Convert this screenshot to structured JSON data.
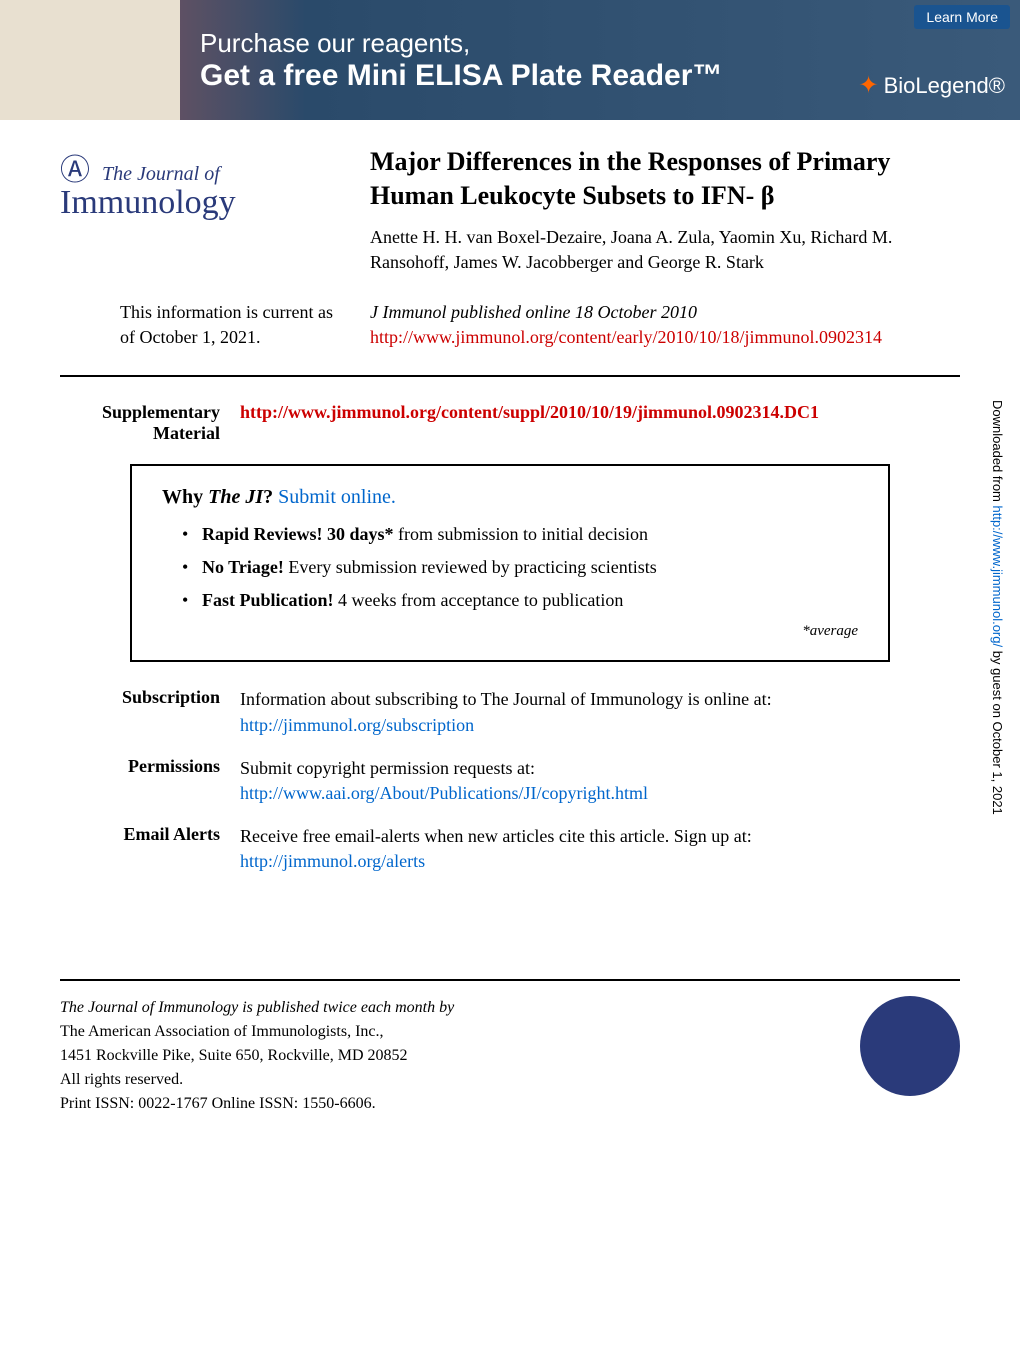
{
  "banner": {
    "top_text": "Purchase our reagents,",
    "main_text": "Get a free Mini ELISA Plate Reader™",
    "learn_more": "Learn More",
    "brand": "BioLegend®"
  },
  "journal": {
    "prefix": "The",
    "name_top": "Journal of",
    "name_bottom": "Immunology"
  },
  "article": {
    "title": "Major Differences in the Responses of Primary Human Leukocyte Subsets to IFN- β",
    "authors": "Anette H. H. van Boxel-Dezaire, Joana A. Zula, Yaomin Xu, Richard M. Ransohoff, James W. Jacobberger and George R. Stark",
    "current_info": "This information is current as of October 1, 2021.",
    "published": "J Immunol  published online 18 October 2010",
    "url": "http://www.jimmunol.org/content/early/2010/10/18/jimmunol.0902314"
  },
  "supplementary": {
    "label": "Supplementary Material",
    "url": "http://www.jimmunol.org/content/suppl/2010/10/19/jimmunol.0902314.DC1"
  },
  "why_box": {
    "title_prefix": "Why ",
    "title_italic": "The JI",
    "title_suffix": "? ",
    "submit_link": "Submit online.",
    "items": [
      {
        "bold": "Rapid Reviews! 30 days*",
        "rest": " from submission to initial decision"
      },
      {
        "bold": "No Triage!",
        "rest": " Every submission reviewed by practicing scientists"
      },
      {
        "bold": "Fast Publication!",
        "rest": " 4 weeks from acceptance to publication"
      }
    ],
    "footnote": "*average"
  },
  "meta": {
    "subscription": {
      "label": "Subscription",
      "text": "Information about subscribing to The Journal of Immunology is online at:",
      "url": "http://jimmunol.org/subscription"
    },
    "permissions": {
      "label": "Permissions",
      "text": "Submit copyright permission requests at:",
      "url": "http://www.aai.org/About/Publications/JI/copyright.html"
    },
    "email_alerts": {
      "label": "Email Alerts",
      "text": "Receive free email-alerts when new articles cite this article. Sign up at:",
      "url": "http://jimmunol.org/alerts"
    }
  },
  "footer": {
    "line1": "The Journal of Immunology is published twice each month by",
    "line2": "The American Association of Immunologists, Inc.,",
    "line3": "1451 Rockville Pike, Suite 650, Rockville, MD 20852",
    "line4": "All rights reserved.",
    "line5": "Print ISSN: 0022-1767 Online ISSN: 1550-6606."
  },
  "sidebar": {
    "prefix": "Downloaded from ",
    "url": "http://www.jimmunol.org/",
    "suffix": " by guest on October 1, 2021"
  },
  "colors": {
    "link_red": "#cc0000",
    "link_blue": "#0066cc",
    "journal_blue": "#2a3a7a",
    "banner_bg": "#3a5a7a"
  }
}
